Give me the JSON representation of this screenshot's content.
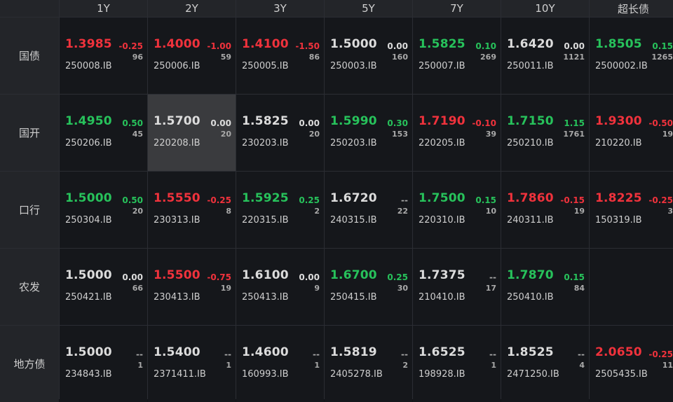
{
  "columns": [
    "1Y",
    "2Y",
    "3Y",
    "5Y",
    "7Y",
    "10Y",
    "超长债"
  ],
  "rows": [
    {
      "label": "国债",
      "cells": [
        {
          "price": "1.3985",
          "change": "-0.25",
          "volume": "96",
          "code": "250008.IB",
          "color": "red"
        },
        {
          "price": "1.4000",
          "change": "-1.00",
          "volume": "59",
          "code": "250006.IB",
          "color": "red"
        },
        {
          "price": "1.4100",
          "change": "-1.50",
          "volume": "86",
          "code": "250005.IB",
          "color": "red"
        },
        {
          "price": "1.5000",
          "change": "0.00",
          "volume": "160",
          "code": "250003.IB",
          "color": "white"
        },
        {
          "price": "1.5825",
          "change": "0.10",
          "volume": "269",
          "code": "250007.IB",
          "color": "green"
        },
        {
          "price": "1.6420",
          "change": "0.00",
          "volume": "1121",
          "code": "250011.IB",
          "color": "white"
        },
        {
          "price": "1.8505",
          "change": "0.15",
          "volume": "1265",
          "code": "2500002.IB",
          "color": "green"
        }
      ]
    },
    {
      "label": "国开",
      "cells": [
        {
          "price": "1.4950",
          "change": "0.50",
          "volume": "45",
          "code": "250206.IB",
          "color": "green"
        },
        {
          "price": "1.5700",
          "change": "0.00",
          "volume": "20",
          "code": "220208.IB",
          "color": "white",
          "selected": true
        },
        {
          "price": "1.5825",
          "change": "0.00",
          "volume": "20",
          "code": "230203.IB",
          "color": "white"
        },
        {
          "price": "1.5990",
          "change": "0.30",
          "volume": "153",
          "code": "250203.IB",
          "color": "green"
        },
        {
          "price": "1.7190",
          "change": "-0.10",
          "volume": "39",
          "code": "220205.IB",
          "color": "red"
        },
        {
          "price": "1.7150",
          "change": "1.15",
          "volume": "1761",
          "code": "250210.IB",
          "color": "green"
        },
        {
          "price": "1.9300",
          "change": "-0.50",
          "volume": "19",
          "code": "210220.IB",
          "color": "red"
        }
      ]
    },
    {
      "label": "口行",
      "cells": [
        {
          "price": "1.5000",
          "change": "0.50",
          "volume": "20",
          "code": "250304.IB",
          "color": "green"
        },
        {
          "price": "1.5550",
          "change": "-0.25",
          "volume": "8",
          "code": "230313.IB",
          "color": "red"
        },
        {
          "price": "1.5925",
          "change": "0.25",
          "volume": "2",
          "code": "220315.IB",
          "color": "green"
        },
        {
          "price": "1.6720",
          "change": "--",
          "volume": "22",
          "code": "240315.IB",
          "color": "white"
        },
        {
          "price": "1.7500",
          "change": "0.15",
          "volume": "10",
          "code": "220310.IB",
          "color": "green"
        },
        {
          "price": "1.7860",
          "change": "-0.15",
          "volume": "19",
          "code": "240311.IB",
          "color": "red"
        },
        {
          "price": "1.8225",
          "change": "-0.25",
          "volume": "3",
          "code": "150319.IB",
          "color": "red"
        }
      ]
    },
    {
      "label": "农发",
      "cells": [
        {
          "price": "1.5000",
          "change": "0.00",
          "volume": "66",
          "code": "250421.IB",
          "color": "white"
        },
        {
          "price": "1.5500",
          "change": "-0.75",
          "volume": "19",
          "code": "230413.IB",
          "color": "red"
        },
        {
          "price": "1.6100",
          "change": "0.00",
          "volume": "9",
          "code": "250413.IB",
          "color": "white"
        },
        {
          "price": "1.6700",
          "change": "0.25",
          "volume": "30",
          "code": "250415.IB",
          "color": "green"
        },
        {
          "price": "1.7375",
          "change": "--",
          "volume": "17",
          "code": "210410.IB",
          "color": "white"
        },
        {
          "price": "1.7870",
          "change": "0.15",
          "volume": "84",
          "code": "250410.IB",
          "color": "green"
        },
        null
      ]
    },
    {
      "label": "地方债",
      "cells": [
        {
          "price": "1.5000",
          "change": "--",
          "volume": "1",
          "code": "234843.IB",
          "color": "white"
        },
        {
          "price": "1.5400",
          "change": "--",
          "volume": "1",
          "code": "2371411.IB",
          "color": "white"
        },
        {
          "price": "1.4600",
          "change": "--",
          "volume": "1",
          "code": "160993.IB",
          "color": "white"
        },
        {
          "price": "1.5819",
          "change": "--",
          "volume": "2",
          "code": "2405278.IB",
          "color": "white"
        },
        {
          "price": "1.6525",
          "change": "--",
          "volume": "1",
          "code": "198928.IB",
          "color": "white"
        },
        {
          "price": "1.8525",
          "change": "--",
          "volume": "4",
          "code": "2471250.IB",
          "color": "white"
        },
        {
          "price": "2.0650",
          "change": "-0.25",
          "volume": "11",
          "code": "2505435.IB",
          "color": "red"
        }
      ]
    }
  ]
}
